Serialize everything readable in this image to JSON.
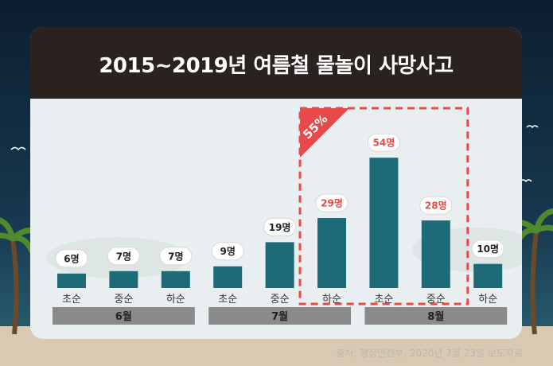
{
  "title": "2015~2019년 여름철 물놀이 사망사고",
  "source": "출처: 행정안전부, 2020년 7월 23일 보도자료",
  "highlight_label": "55%",
  "colors": {
    "bar": "#1e6b78",
    "highlight": "#e84a4a",
    "header": "#2a221f",
    "month_band": "#8a8a8a"
  },
  "chart_data": {
    "type": "bar",
    "title": "2015~2019년 여름철 물놀이 사망사고",
    "categories": [
      "초순",
      "중순",
      "하순",
      "초순",
      "중순",
      "하순",
      "초순",
      "중순",
      "하순"
    ],
    "values": [
      6,
      7,
      7,
      9,
      19,
      29,
      54,
      28,
      10
    ],
    "data_labels": [
      "6명",
      "7명",
      "7명",
      "9명",
      "19명",
      "29명",
      "54명",
      "28명",
      "10명"
    ],
    "groups": [
      {
        "label": "6월",
        "start": 0,
        "end": 2
      },
      {
        "label": "7월",
        "start": 3,
        "end": 5
      },
      {
        "label": "8월",
        "start": 6,
        "end": 8
      }
    ],
    "highlight": {
      "start": 5,
      "end": 7,
      "label": "55%"
    },
    "ylim": [
      0,
      60
    ],
    "grid": false
  }
}
